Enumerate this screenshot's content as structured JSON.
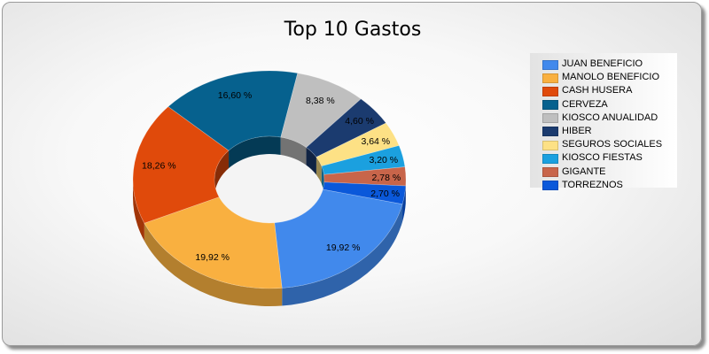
{
  "chart_data": {
    "type": "pie",
    "variant": "3d-doughnut",
    "title": "Top 10 Gastos",
    "legend_position": "right",
    "slices": [
      {
        "name": "JUAN BENEFICIO",
        "value": 19.92,
        "label": "19,92 %",
        "color": "#4189ec"
      },
      {
        "name": "MANOLO BENEFICIO",
        "value": 19.92,
        "label": "19,92 %",
        "color": "#f9b040"
      },
      {
        "name": "CASH HUSERA",
        "value": 18.26,
        "label": "18,26 %",
        "color": "#e04a0b"
      },
      {
        "name": "CERVEZA",
        "value": 16.6,
        "label": "16,60 %",
        "color": "#06618e"
      },
      {
        "name": "KIOSCO ANUALIDAD",
        "value": 8.38,
        "label": "8,38 %",
        "color": "#bfbfbf"
      },
      {
        "name": "HIBER",
        "value": 4.6,
        "label": "4,60 %",
        "color": "#1b3b6f"
      },
      {
        "name": "SEGUROS SOCIALES",
        "value": 3.64,
        "label": "3,64 %",
        "color": "#fde185"
      },
      {
        "name": "KIOSCO FIESTAS",
        "value": 3.2,
        "label": "3,20 %",
        "color": "#1ba0df"
      },
      {
        "name": "GIGANTE",
        "value": 2.78,
        "label": "2,78 %",
        "color": "#c8654a"
      },
      {
        "name": "TORREZNOS",
        "value": 2.7,
        "label": "2,70 %",
        "color": "#0a58da"
      }
    ]
  }
}
